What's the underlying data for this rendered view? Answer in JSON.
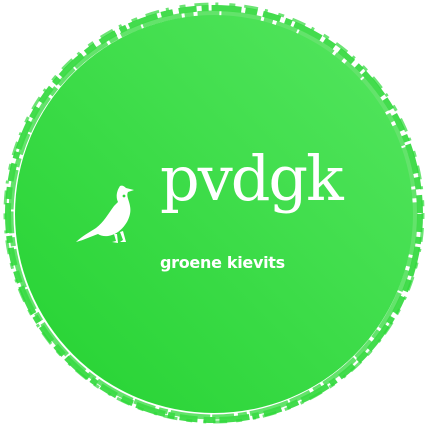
{
  "logo": {
    "wordmark": "pvdgk",
    "tagline": "groene kievits",
    "emblem": "bird-icon"
  },
  "colors": {
    "badge_primary": "#2fd83a",
    "badge_highlight": "#52e45c",
    "text": "#ffffff",
    "background": "#ffffff"
  }
}
